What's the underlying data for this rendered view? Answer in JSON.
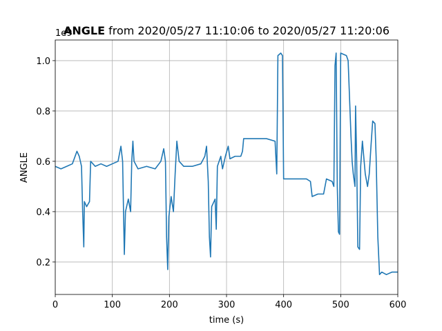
{
  "chart_data": {
    "type": "line",
    "title_variable": "ANGLE",
    "title": "from 2020/05/27 11:10:06 to 2020/05/27 11:20:06",
    "xlabel": "time (s)",
    "ylabel": "ANGLE",
    "offset_text": "1e9",
    "xlim": [
      0,
      600
    ],
    "xticks": [
      0,
      100,
      200,
      300,
      400,
      500,
      600
    ],
    "ylim": [
      0.071,
      1.082
    ],
    "yticks": [
      0.2,
      0.4,
      0.6,
      0.8,
      {
        "value": 1,
        "label": "1.0"
      }
    ],
    "grid": true,
    "x": [
      0,
      10,
      20,
      30,
      38,
      42,
      46,
      48,
      50,
      51,
      55,
      60,
      62,
      70,
      80,
      90,
      100,
      110,
      115,
      118,
      120,
      121,
      123,
      128,
      132,
      134,
      136,
      138,
      145,
      160,
      175,
      185,
      190,
      193,
      195,
      197,
      199,
      203,
      207,
      210,
      213,
      217,
      225,
      240,
      255,
      262,
      265,
      268,
      270,
      272,
      274,
      280,
      282,
      284,
      290,
      293,
      298,
      303,
      306,
      315,
      325,
      328,
      330,
      350,
      370,
      385,
      388,
      390,
      395,
      398,
      400,
      420,
      440,
      447,
      450,
      460,
      470,
      475,
      485,
      488,
      490,
      492,
      494,
      496,
      498,
      500,
      510,
      513,
      518,
      520,
      522,
      525,
      526,
      528,
      530,
      533,
      535,
      538,
      543,
      547,
      550,
      553,
      556,
      560,
      562,
      565,
      568,
      572,
      580,
      590,
      600
    ],
    "series": [
      {
        "name": "ANGLE",
        "color": "#1f77b4",
        "values": [
          0.58,
          0.57,
          0.58,
          0.59,
          0.64,
          0.62,
          0.58,
          0.4,
          0.26,
          0.44,
          0.42,
          0.44,
          0.6,
          0.58,
          0.59,
          0.58,
          0.59,
          0.6,
          0.66,
          0.6,
          0.35,
          0.23,
          0.4,
          0.45,
          0.4,
          0.6,
          0.68,
          0.6,
          0.57,
          0.58,
          0.57,
          0.6,
          0.65,
          0.6,
          0.3,
          0.17,
          0.38,
          0.46,
          0.4,
          0.55,
          0.68,
          0.6,
          0.58,
          0.58,
          0.59,
          0.62,
          0.66,
          0.52,
          0.3,
          0.22,
          0.42,
          0.45,
          0.33,
          0.58,
          0.62,
          0.57,
          0.62,
          0.66,
          0.61,
          0.62,
          0.62,
          0.64,
          0.69,
          0.69,
          0.69,
          0.68,
          0.55,
          1.02,
          1.03,
          1.02,
          0.53,
          0.53,
          0.53,
          0.52,
          0.46,
          0.47,
          0.47,
          0.53,
          0.52,
          0.5,
          0.98,
          1.03,
          0.5,
          0.32,
          0.31,
          1.03,
          1.02,
          1.0,
          0.7,
          0.6,
          0.55,
          0.5,
          0.82,
          0.6,
          0.26,
          0.25,
          0.58,
          0.68,
          0.55,
          0.5,
          0.55,
          0.66,
          0.76,
          0.75,
          0.62,
          0.3,
          0.15,
          0.16,
          0.15,
          0.16,
          0.16
        ]
      }
    ]
  }
}
